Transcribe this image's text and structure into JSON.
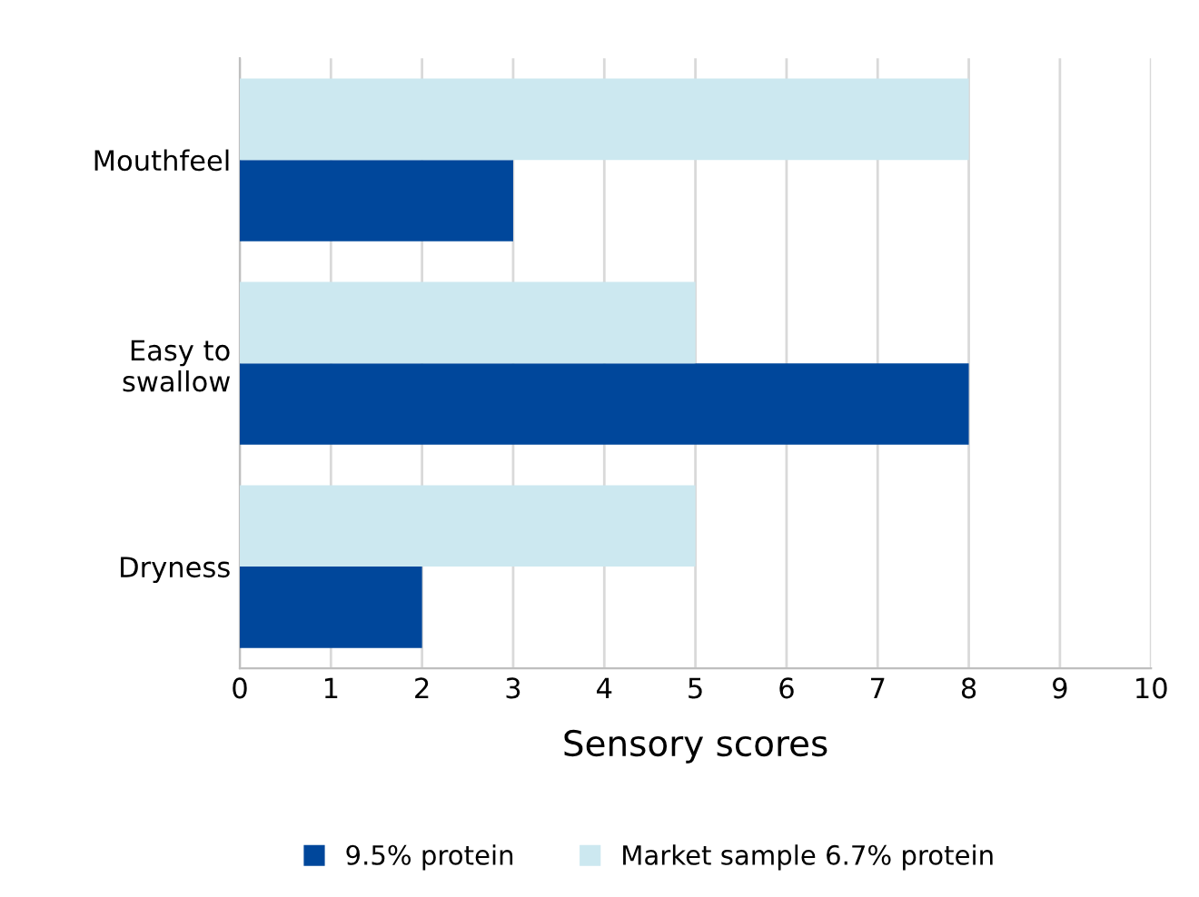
{
  "chart_data": {
    "type": "bar",
    "orientation": "horizontal",
    "xlabel": "Sensory scores",
    "categories": [
      "Mouthfeel",
      "Easy to\nswallow",
      "Dryness"
    ],
    "series": [
      {
        "name": "9.5% protein",
        "color": "#00479b",
        "values": [
          3,
          8,
          2
        ]
      },
      {
        "name": "Market sample 6.7% protein",
        "color": "#cce8f0",
        "values": [
          8,
          5,
          5
        ]
      }
    ],
    "xlim": [
      0,
      10
    ],
    "xticks": [
      0,
      1,
      2,
      3,
      4,
      5,
      6,
      7,
      8,
      9,
      10
    ],
    "grid": "x",
    "legend": "bottom"
  }
}
